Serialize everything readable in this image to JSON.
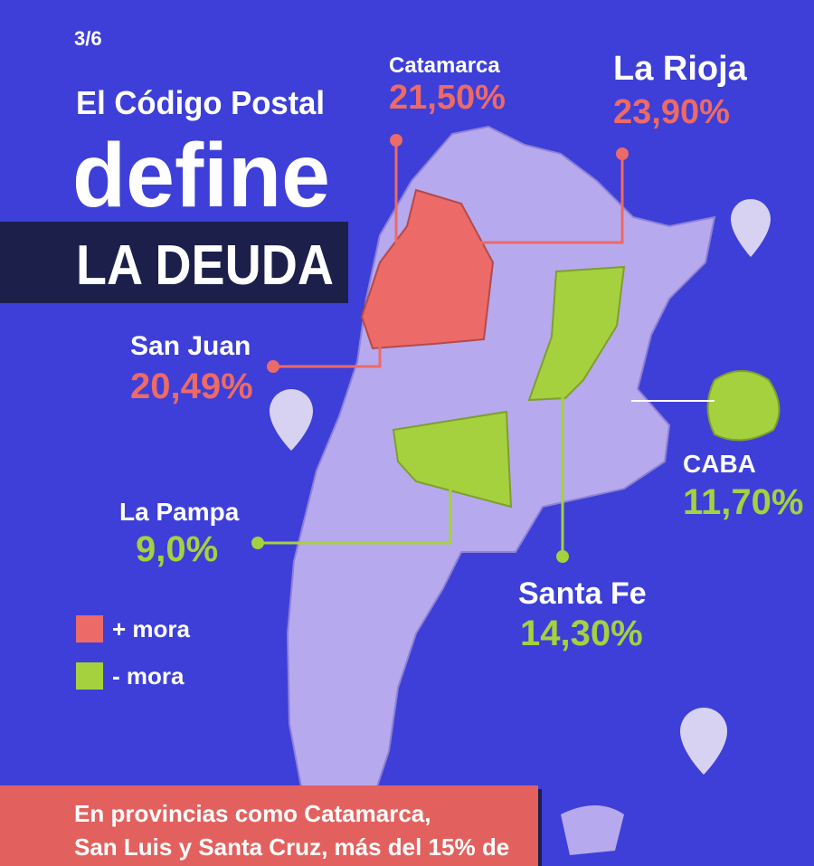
{
  "page_number": "3/6",
  "title": {
    "line1": "El Código Postal",
    "line2": "define",
    "line3": "LA DEUDA"
  },
  "provinces": [
    {
      "name": "Catamarca",
      "value": "21,50%"
    },
    {
      "name": "La Rioja",
      "value": "23,90%"
    },
    {
      "name": "San Juan",
      "value": "20,49%"
    },
    {
      "name": "CABA",
      "value": "11,70%"
    },
    {
      "name": "La Pampa",
      "value": "9,0%"
    },
    {
      "name": "Santa Fe",
      "value": "14,30%"
    }
  ],
  "legend": [
    "+ mora",
    "- mora"
  ],
  "footer": {
    "lines": [
      "En provincias como Catamarca,",
      "San Luis y Santa Cruz, más del 15%  de"
    ]
  }
}
